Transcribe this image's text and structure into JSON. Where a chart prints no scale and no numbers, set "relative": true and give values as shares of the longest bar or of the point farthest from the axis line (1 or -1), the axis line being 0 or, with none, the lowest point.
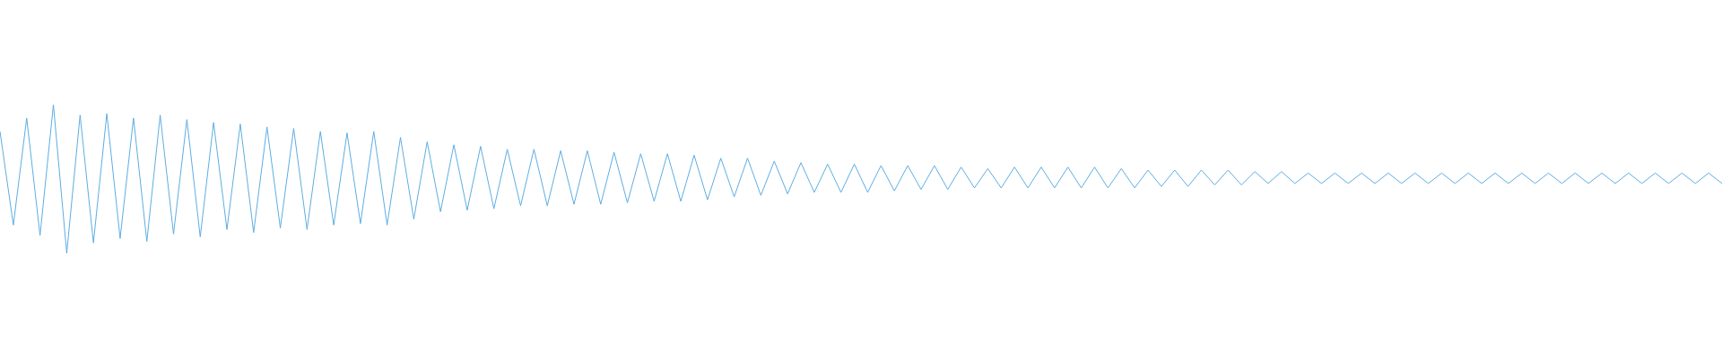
{
  "chart_data": {
    "type": "line",
    "relative": true,
    "color": "#5dade2",
    "categories": [
      null,
      null,
      null,
      null,
      null,
      null,
      null,
      null,
      null,
      null,
      null,
      null,
      null,
      null,
      null,
      null,
      null,
      null,
      null,
      null,
      null,
      null,
      null,
      null,
      null,
      null,
      null,
      null,
      null,
      null,
      null,
      null,
      null,
      null,
      null,
      null,
      null,
      null,
      null,
      null,
      null,
      null,
      null,
      null,
      null,
      null,
      null,
      null,
      null,
      null,
      null,
      null,
      null,
      null,
      null,
      null,
      null,
      null,
      null,
      null,
      null,
      null,
      null,
      null,
      null,
      null,
      null,
      null,
      null,
      null,
      null,
      null,
      null,
      null,
      null,
      null,
      null,
      null,
      null,
      null,
      null,
      null,
      null,
      null,
      null,
      null,
      null,
      null,
      null,
      null,
      null,
      null,
      null,
      null,
      null,
      null,
      null,
      null,
      null,
      null,
      null,
      null,
      null,
      null,
      null,
      null,
      null,
      null,
      null,
      null,
      null,
      null,
      null,
      null,
      null,
      null,
      null,
      null,
      null,
      null,
      null,
      null,
      null,
      null,
      null,
      null,
      null,
      null,
      null,
      null
    ],
    "values": [
      0.82,
      0.19,
      0.91,
      0.12,
      1.0,
      0,
      0.93,
      0.07,
      0.94,
      0.1,
      0.91,
      0.08,
      0.93,
      0.13,
      0.9,
      0.11,
      0.88,
      0.16,
      0.87,
      0.14,
      0.85,
      0.17,
      0.84,
      0.16,
      0.82,
      0.19,
      0.81,
      0.2,
      0.82,
      0.19,
      0.78,
      0.23,
      0.75,
      0.28,
      0.73,
      0.29,
      0.72,
      0.3,
      0.7,
      0.32,
      0.7,
      0.32,
      0.69,
      0.33,
      0.69,
      0.33,
      0.68,
      0.34,
      0.67,
      0.35,
      0.67,
      0.35,
      0.66,
      0.36,
      0.64,
      0.38,
      0.64,
      0.39,
      0.62,
      0.4,
      0.61,
      0.41,
      0.6,
      0.41,
      0.6,
      0.41,
      0.59,
      0.42,
      0.59,
      0.43,
      0.59,
      0.43,
      0.58,
      0.44,
      0.57,
      0.44,
      0.58,
      0.44,
      0.58,
      0.44,
      0.58,
      0.44,
      0.58,
      0.44,
      0.57,
      0.44,
      0.56,
      0.45,
      0.56,
      0.45,
      0.56,
      0.46,
      0.56,
      0.46,
      0.55,
      0.47,
      0.55,
      0.47,
      0.54,
      0.47,
      0.54,
      0.47,
      0.54,
      0.47,
      0.54,
      0.47,
      0.54,
      0.47,
      0.54,
      0.47,
      0.54,
      0.47,
      0.54,
      0.47,
      0.54,
      0.47,
      0.54,
      0.47,
      0.54,
      0.47,
      0.54,
      0.47,
      0.54,
      0.47,
      0.54,
      0.47,
      0.54,
      0.47,
      0.54,
      0.47
    ]
  }
}
